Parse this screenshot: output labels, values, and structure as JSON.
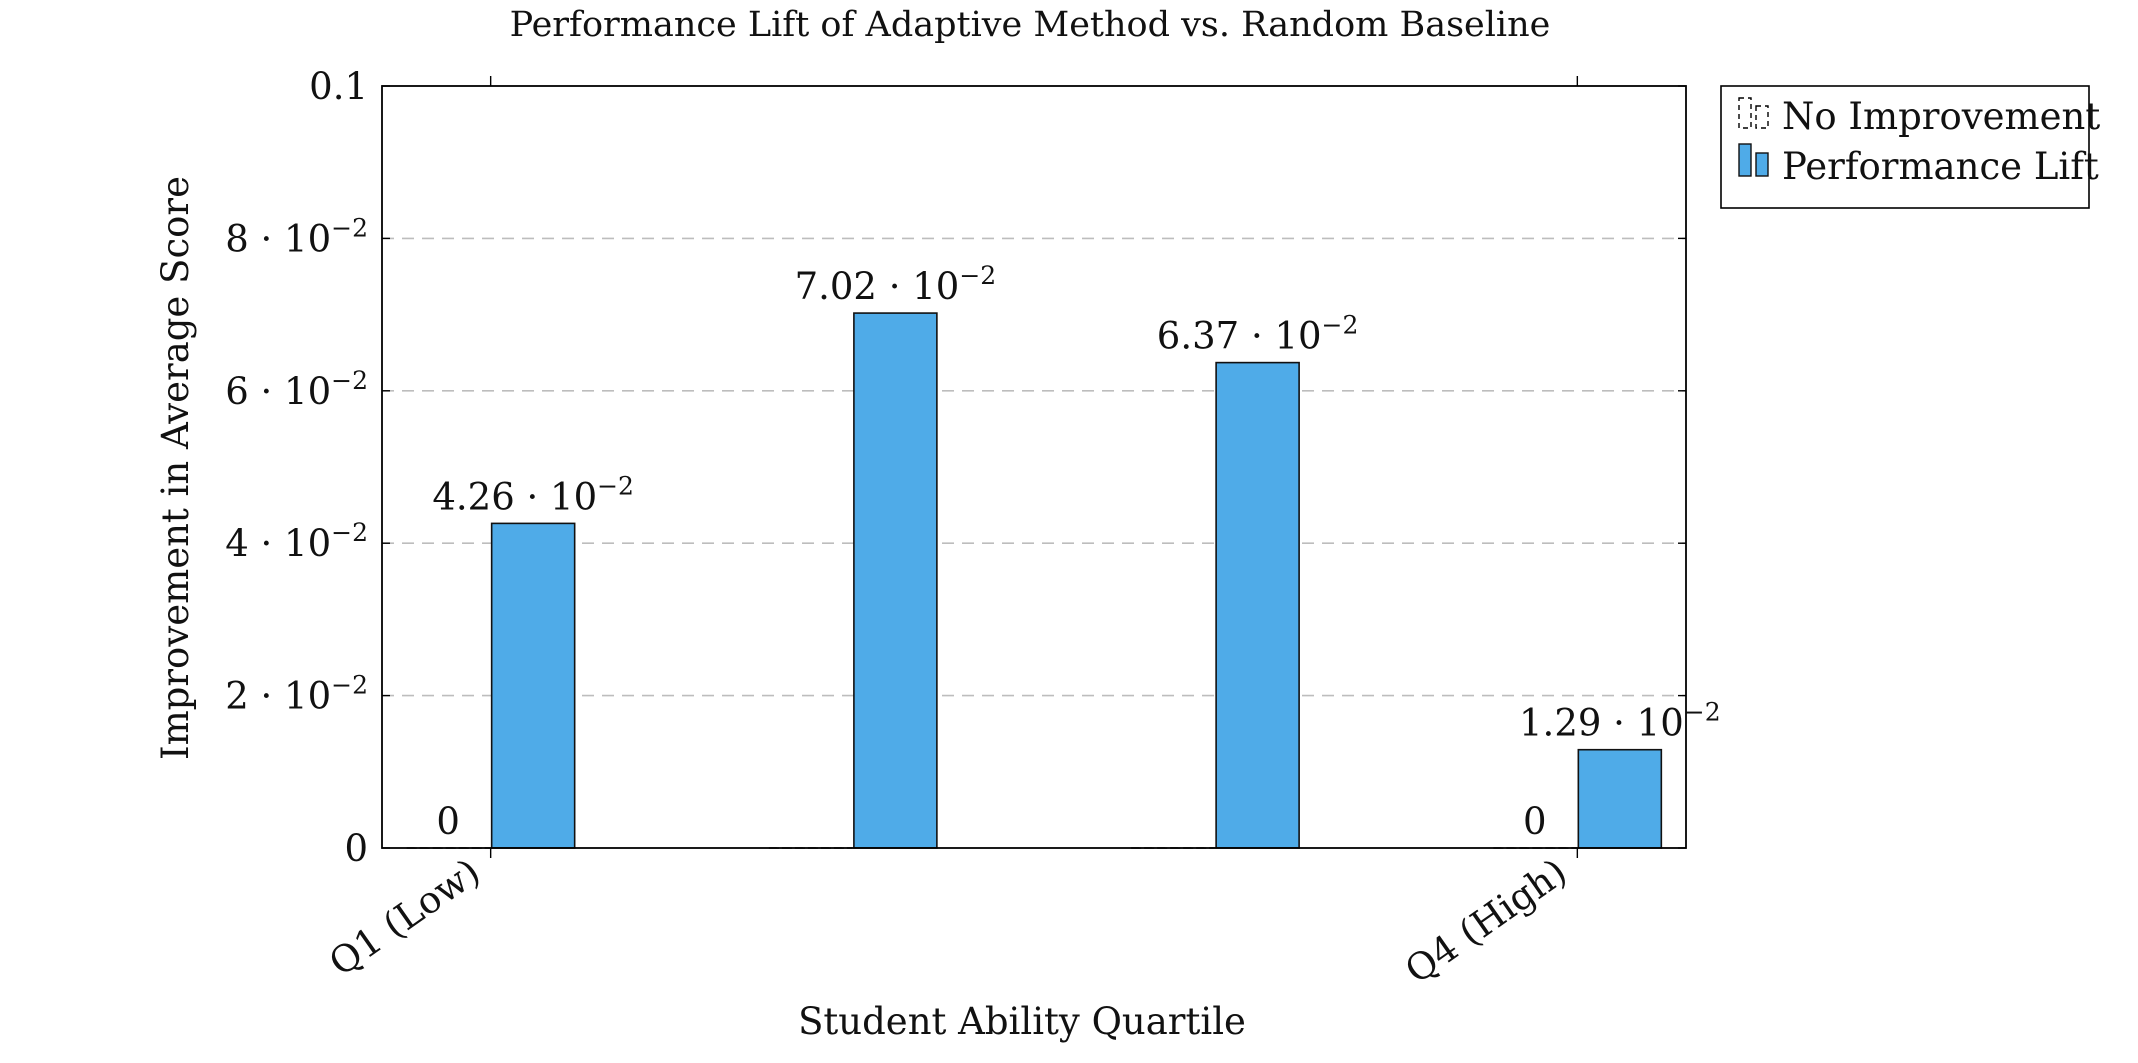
{
  "chart_data": {
    "type": "bar",
    "title": "Performance Lift of Adaptive Method vs. Random Baseline",
    "xlabel": "Student Ability Quartile",
    "ylabel": "Improvement in Average Score",
    "categories": [
      "Q1 (Low)",
      "",
      "",
      "Q4 (High)"
    ],
    "series": [
      {
        "name": "No Improvement",
        "values": [
          0,
          0,
          0,
          0
        ],
        "data_labels": [
          "0",
          "",
          "",
          "0"
        ],
        "color": "#ffffff",
        "style": "dashed-outline"
      },
      {
        "name": "Performance Lift",
        "values": [
          0.0426,
          0.0702,
          0.0637,
          0.0129
        ],
        "data_labels": [
          "4.26 · 10^-2",
          "7.02 · 10^-2",
          "6.37 · 10^-2",
          "1.29 · 10^-2"
        ],
        "color": "#4FABE8"
      }
    ],
    "ylim": [
      0,
      0.1
    ],
    "yticks": [
      0,
      0.02,
      0.04,
      0.06,
      0.08,
      0.1
    ],
    "ytick_labels": [
      "0",
      "2 · 10^-2",
      "4 · 10^-2",
      "6 · 10^-2",
      "8 · 10^-2",
      "0.1"
    ],
    "grid": "horizontal-dashed",
    "legend_position": "outside-top-right"
  }
}
